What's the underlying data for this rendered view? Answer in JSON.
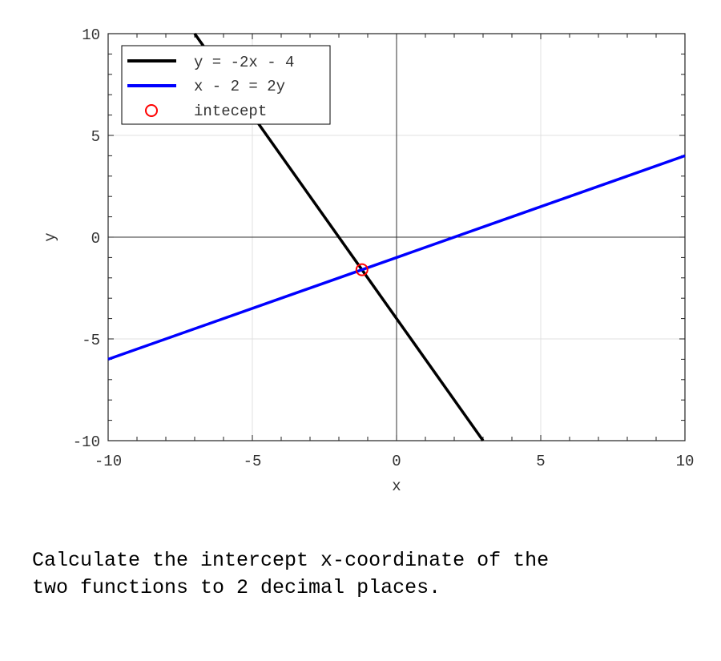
{
  "chart_data": {
    "type": "line",
    "xlabel": "x",
    "ylabel": "y",
    "xlim": [
      -10,
      10
    ],
    "ylim": [
      -10,
      10
    ],
    "xticks": [
      "-10",
      "-5",
      "0",
      "5",
      "10"
    ],
    "yticks": [
      "-10",
      "-5",
      "0",
      "5",
      "10"
    ],
    "grid": true,
    "legend_position": "top-left",
    "series": [
      {
        "name": "y = -2x - 4",
        "color": "#000000",
        "x": [
          -7,
          3
        ],
        "y": [
          10,
          -10
        ]
      },
      {
        "name": "x - 2 = 2y",
        "color": "#0000ff",
        "x": [
          -10,
          10
        ],
        "y": [
          -6,
          4
        ]
      }
    ],
    "markers": [
      {
        "name": "intecept",
        "color": "#ff0000",
        "shape": "open-circle",
        "x": -1.2,
        "y": -1.6
      }
    ]
  },
  "question": "Calculate the intercept x-coordinate of the\ntwo functions to 2 decimal places."
}
